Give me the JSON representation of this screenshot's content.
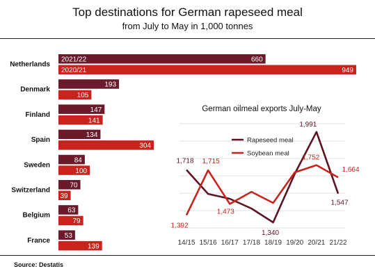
{
  "title": "Top destinations for German rapeseed meal",
  "subtitle": "from July to May in 1,000 tonnes",
  "source": "Source: Destatis",
  "colors": {
    "series_2122": "#6b1a2b",
    "series_2021": "#c8231c",
    "rapeseed": "#5c1424",
    "soybean": "#c8231c",
    "grid": "#d9d9d9",
    "axis_text": "#333333"
  },
  "chart_data": [
    {
      "type": "bar",
      "orientation": "horizontal",
      "categories": [
        "Netherlands",
        "Denmark",
        "Finland",
        "Spain",
        "Sweden",
        "Switzerland",
        "Belgium",
        "France"
      ],
      "series": [
        {
          "name": "2021/22",
          "values": [
            660,
            193,
            147,
            134,
            84,
            70,
            63,
            53
          ]
        },
        {
          "name": "2020/21",
          "values": [
            949,
            105,
            141,
            304,
            100,
            39,
            79,
            139
          ]
        }
      ],
      "data_labels": [
        [
          "660",
          "193",
          "147",
          "134",
          "84",
          "70",
          "63",
          "53"
        ],
        [
          "949",
          "105",
          "141",
          "304",
          "100",
          "39",
          "79",
          "139"
        ]
      ]
    },
    {
      "type": "line",
      "title": "German oilmeal exports July-May",
      "categories": [
        "14/15",
        "15/16",
        "16/17",
        "17/18",
        "18/19",
        "19/20",
        "20/21",
        "21/22"
      ],
      "grid": true,
      "legend_position": "top-center",
      "series": [
        {
          "name": "Rapeseed meal",
          "values": [
            1718,
            1545,
            1510,
            1440,
            1340,
            1690,
            1991,
            1547
          ],
          "labels": [
            "1,718",
            "",
            "",
            "",
            "1,340",
            "",
            "1,991",
            "1,547"
          ]
        },
        {
          "name": "Soybean meal",
          "values": [
            1392,
            1715,
            1473,
            1560,
            1480,
            1700,
            1752,
            1664
          ],
          "labels": [
            "1,392",
            "1,715",
            "1,473",
            "",
            "",
            "",
            "1,752",
            "1,664"
          ]
        }
      ]
    }
  ]
}
